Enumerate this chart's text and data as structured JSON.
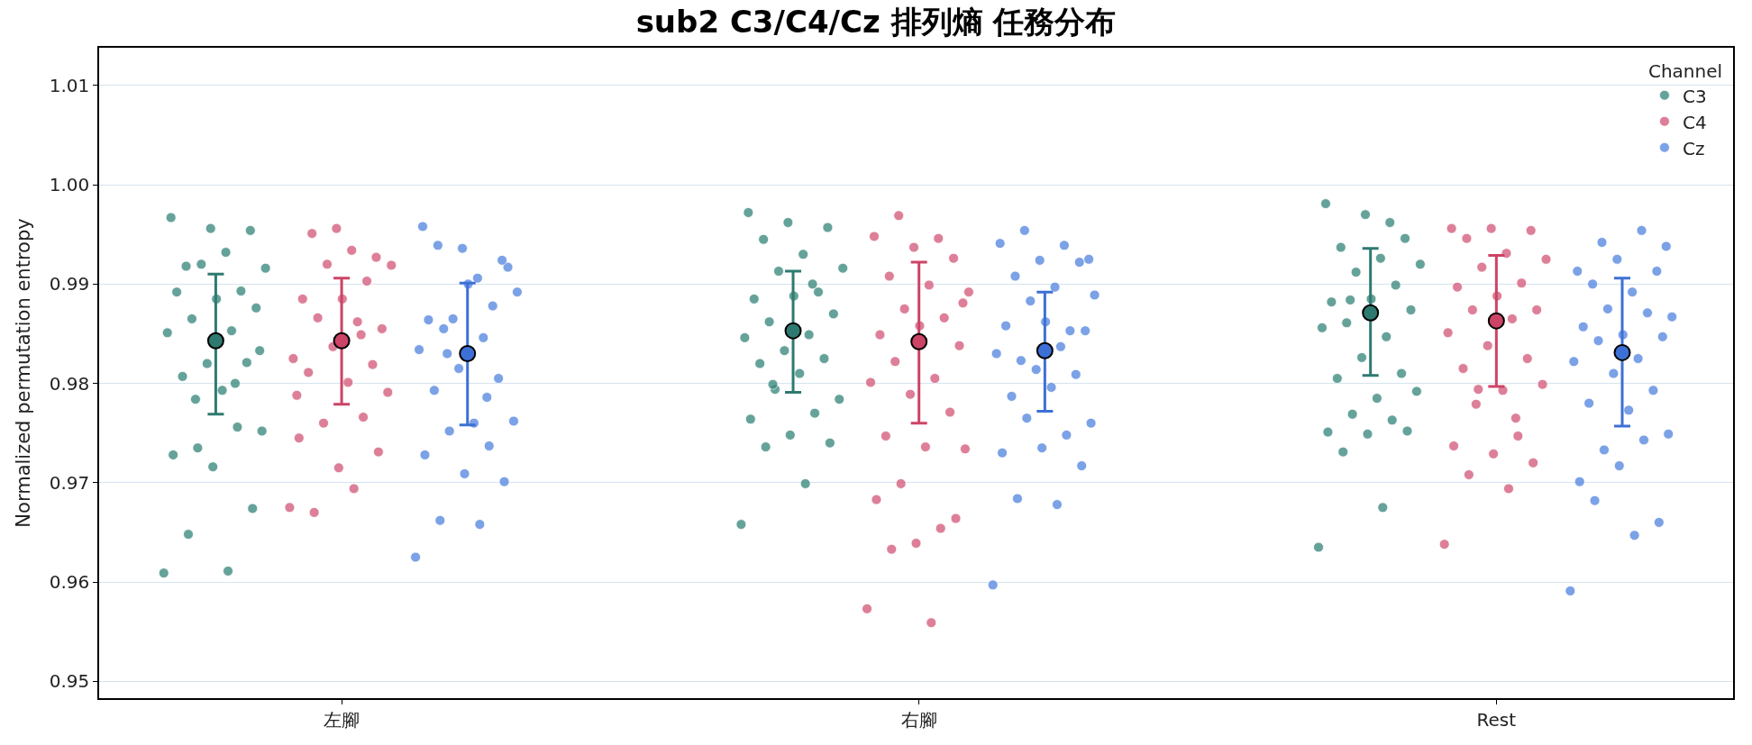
{
  "chart_data": {
    "type": "scatter",
    "title": "sub2 C3/C4/Cz 排列熵 任務分布",
    "ylabel": "Normalized permutation entropy",
    "legend_title": "Channel",
    "legend": "top right",
    "grid": "y",
    "marker": "circle",
    "categories": [
      "左腳",
      "右腳",
      "Rest"
    ],
    "ylim": [
      0.9483,
      1.0138
    ],
    "yticks": [
      0.95,
      0.96,
      0.97,
      0.98,
      0.99,
      {
        "value": 1,
        "label": "1.00"
      },
      1.01
    ],
    "series": [
      {
        "name": "C3",
        "color": "#3f8c82",
        "x": [
          "左腳",
          "左腳",
          "左腳",
          "左腳",
          "左腳",
          "左腳",
          "左腳",
          "左腳",
          "左腳",
          "左腳",
          "左腳",
          "左腳",
          "左腳",
          "左腳",
          "左腳",
          "左腳",
          "左腳",
          "左腳",
          "左腳",
          "左腳",
          "左腳",
          "左腳",
          "左腳",
          "左腳",
          "左腳",
          "左腳",
          "左腳",
          "左腳",
          "左腳",
          "左腳",
          "右腳",
          "右腳",
          "右腳",
          "右腳",
          "右腳",
          "右腳",
          "右腳",
          "右腳",
          "右腳",
          "右腳",
          "右腳",
          "右腳",
          "右腳",
          "右腳",
          "右腳",
          "右腳",
          "右腳",
          "右腳",
          "右腳",
          "右腳",
          "右腳",
          "右腳",
          "右腳",
          "右腳",
          "右腳",
          "右腳",
          "右腳",
          "右腳",
          "右腳",
          "Rest",
          "Rest",
          "Rest",
          "Rest",
          "Rest",
          "Rest",
          "Rest",
          "Rest",
          "Rest",
          "Rest",
          "Rest",
          "Rest",
          "Rest",
          "Rest",
          "Rest",
          "Rest",
          "Rest",
          "Rest",
          "Rest",
          "Rest",
          "Rest",
          "Rest",
          "Rest",
          "Rest",
          "Rest",
          "Rest",
          "Rest",
          "Rest",
          "Rest"
        ],
        "values": [
          0.9609,
          0.9611,
          0.9648,
          0.9674,
          0.9716,
          0.9728,
          0.9756,
          0.9735,
          0.9752,
          0.9793,
          0.9807,
          0.9821,
          0.982,
          0.9851,
          0.9853,
          0.9865,
          0.9876,
          0.9885,
          0.9892,
          0.9893,
          0.992,
          0.9916,
          0.9932,
          0.9918,
          0.9954,
          0.9956,
          0.9967,
          0.98,
          0.9784,
          0.9833,
          0.9658,
          0.9699,
          0.9736,
          0.974,
          0.9748,
          0.9764,
          0.977,
          0.9794,
          0.9784,
          0.981,
          0.982,
          0.9825,
          0.9833,
          0.9846,
          0.9849,
          0.9862,
          0.987,
          0.9888,
          0.9885,
          0.9892,
          0.9913,
          0.9916,
          0.993,
          0.9945,
          0.9957,
          0.9962,
          0.9972,
          0.99,
          0.9799,
          0.9635,
          0.9675,
          0.9731,
          0.9752,
          0.9749,
          0.9751,
          0.9763,
          0.9769,
          0.9792,
          0.9785,
          0.9805,
          0.981,
          0.9826,
          0.9856,
          0.9847,
          0.9861,
          0.9874,
          0.9885,
          0.9882,
          0.9899,
          0.9912,
          0.992,
          0.9926,
          0.9937,
          0.9946,
          0.997,
          0.9981,
          0.9962,
          0.9884
        ]
      },
      {
        "name": "C4",
        "color": "#d5607f",
        "x": [
          "左腳",
          "左腳",
          "左腳",
          "左腳",
          "左腳",
          "左腳",
          "左腳",
          "左腳",
          "左腳",
          "左腳",
          "左腳",
          "左腳",
          "左腳",
          "左腳",
          "左腳",
          "左腳",
          "左腳",
          "左腳",
          "左腳",
          "左腳",
          "左腳",
          "左腳",
          "左腳",
          "左腳",
          "左腳",
          "左腳",
          "左腳",
          "左腳",
          "右腳",
          "右腳",
          "右腳",
          "右腳",
          "右腳",
          "右腳",
          "右腳",
          "右腳",
          "右腳",
          "右腳",
          "右腳",
          "右腳",
          "右腳",
          "右腳",
          "右腳",
          "右腳",
          "右腳",
          "右腳",
          "右腳",
          "右腳",
          "右腳",
          "右腳",
          "右腳",
          "右腳",
          "右腳",
          "右腳",
          "右腳",
          "右腳",
          "右腳",
          "右腳",
          "Rest",
          "Rest",
          "Rest",
          "Rest",
          "Rest",
          "Rest",
          "Rest",
          "Rest",
          "Rest",
          "Rest",
          "Rest",
          "Rest",
          "Rest",
          "Rest",
          "Rest",
          "Rest",
          "Rest",
          "Rest",
          "Rest",
          "Rest",
          "Rest",
          "Rest",
          "Rest",
          "Rest",
          "Rest",
          "Rest",
          "Rest",
          "Rest",
          "Rest"
        ],
        "values": [
          0.9675,
          0.9694,
          0.967,
          0.9731,
          0.9715,
          0.9745,
          0.9766,
          0.976,
          0.9791,
          0.9801,
          0.9811,
          0.9819,
          0.9837,
          0.9825,
          0.9862,
          0.9866,
          0.9855,
          0.9885,
          0.9885,
          0.9903,
          0.992,
          0.9919,
          0.9934,
          0.9951,
          0.9927,
          0.9956,
          0.9788,
          0.9849,
          0.9573,
          0.9559,
          0.9633,
          0.9664,
          0.9639,
          0.9683,
          0.9654,
          0.9699,
          0.9734,
          0.9736,
          0.9747,
          0.9771,
          0.9789,
          0.9801,
          0.9805,
          0.9822,
          0.9838,
          0.9858,
          0.9849,
          0.9866,
          0.9875,
          0.9892,
          0.9899,
          0.9908,
          0.9926,
          0.9937,
          0.9948,
          0.9946,
          0.9969,
          0.9881,
          0.9638,
          0.9694,
          0.9708,
          0.972,
          0.9729,
          0.9737,
          0.9747,
          0.9794,
          0.9799,
          0.9793,
          0.9815,
          0.9825,
          0.9838,
          0.9851,
          0.9865,
          0.9874,
          0.9874,
          0.9888,
          0.9897,
          0.9901,
          0.9917,
          0.9925,
          0.9931,
          0.9946,
          0.9954,
          0.9956,
          0.9956,
          0.9765,
          0.9779
        ]
      },
      {
        "name": "Cz",
        "color": "#5b8ae0",
        "x": [
          "左腳",
          "左腳",
          "左腳",
          "左腳",
          "左腳",
          "左腳",
          "左腳",
          "左腳",
          "左腳",
          "左腳",
          "左腳",
          "左腳",
          "左腳",
          "左腳",
          "左腳",
          "左腳",
          "左腳",
          "左腳",
          "左腳",
          "左腳",
          "左腳",
          "左腳",
          "左腳",
          "左腳",
          "左腳",
          "左腳",
          "左腳",
          "左腳",
          "左腳",
          "右腳",
          "右腳",
          "右腳",
          "右腳",
          "右腳",
          "右腳",
          "右腳",
          "右腳",
          "右腳",
          "右腳",
          "右腳",
          "右腳",
          "右腳",
          "右腳",
          "右腳",
          "右腳",
          "右腳",
          "右腳",
          "右腳",
          "右腳",
          "右腳",
          "右腳",
          "右腳",
          "右腳",
          "右腳",
          "右腳",
          "右腳",
          "右腳",
          "右腳",
          "右腳",
          "Rest",
          "Rest",
          "Rest",
          "Rest",
          "Rest",
          "Rest",
          "Rest",
          "Rest",
          "Rest",
          "Rest",
          "Rest",
          "Rest",
          "Rest",
          "Rest",
          "Rest",
          "Rest",
          "Rest",
          "Rest",
          "Rest",
          "Rest",
          "Rest",
          "Rest",
          "Rest",
          "Rest",
          "Rest",
          "Rest",
          "Rest",
          "Rest",
          "Rest",
          "Rest"
        ],
        "values": [
          0.9625,
          0.9658,
          0.9662,
          0.9701,
          0.9709,
          0.9728,
          0.9737,
          0.9752,
          0.9762,
          0.976,
          0.9793,
          0.9805,
          0.9815,
          0.9834,
          0.9846,
          0.9855,
          0.9917,
          0.99,
          0.9864,
          0.9878,
          0.9865,
          0.9892,
          0.9906,
          0.9939,
          0.9924,
          0.9936,
          0.9958,
          0.9786,
          0.983,
          0.9597,
          0.9678,
          0.9684,
          0.9717,
          0.9735,
          0.973,
          0.9748,
          0.9765,
          0.976,
          0.9796,
          0.9787,
          0.9809,
          0.9814,
          0.983,
          0.9837,
          0.9823,
          0.9853,
          0.9862,
          0.9858,
          0.9853,
          0.9883,
          0.9889,
          0.9897,
          0.9908,
          0.9922,
          0.9924,
          0.9941,
          0.9939,
          0.9954,
          0.9925,
          0.9591,
          0.9647,
          0.9682,
          0.966,
          0.9717,
          0.9701,
          0.9743,
          0.9733,
          0.9749,
          0.9773,
          0.978,
          0.9793,
          0.981,
          0.9822,
          0.9825,
          0.9843,
          0.9847,
          0.9849,
          0.9857,
          0.9871,
          0.9875,
          0.9867,
          0.9892,
          0.99,
          0.9913,
          0.9925,
          0.9913,
          0.9954,
          0.9942,
          0.9938
        ]
      },
      {
        "color": "#2f7a70",
        "values": [
          0.9843,
          0.9853,
          0.9871
        ],
        "errors": [
          [
            0.9769,
            0.991
          ],
          [
            0.9791,
            0.9913
          ],
          [
            0.9808,
            0.9936
          ]
        ]
      },
      {
        "color": "#cc4466",
        "values": [
          0.9843,
          0.9842,
          0.9863
        ],
        "errors": [
          [
            0.9779,
            0.9906
          ],
          [
            0.976,
            0.9922
          ],
          [
            0.9797,
            0.9929
          ]
        ]
      },
      {
        "color": "#3d70d6",
        "values": [
          0.983,
          0.9833,
          0.9831
        ],
        "errors": [
          [
            0.9758,
            0.9901
          ],
          [
            0.9772,
            0.9892
          ],
          [
            0.9757,
            0.9906
          ]
        ]
      }
    ]
  }
}
